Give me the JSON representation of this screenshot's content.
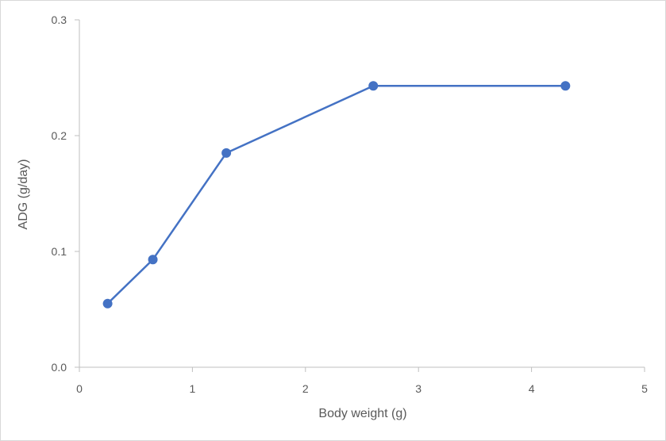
{
  "chart_data": {
    "type": "scatter",
    "title": "",
    "xlabel": "Body weight (g)",
    "ylabel": "ADG (g/day)",
    "xlim": [
      0,
      5
    ],
    "ylim": [
      0,
      0.3
    ],
    "x_ticks": [
      "0",
      "1",
      "2",
      "3",
      "4",
      "5"
    ],
    "y_ticks": [
      "0.0",
      "0.1",
      "0.2",
      "0.3"
    ],
    "grid": false,
    "series": [
      {
        "x": [
          0.25,
          0.65,
          1.3,
          2.6,
          4.3
        ],
        "y": [
          0.055,
          0.093,
          0.185,
          0.243,
          0.243
        ],
        "lines": true,
        "markers": true
      }
    ],
    "colors": {
      "series": "#4472c4",
      "axis": "#bfbfbf",
      "text": "#595959"
    }
  }
}
